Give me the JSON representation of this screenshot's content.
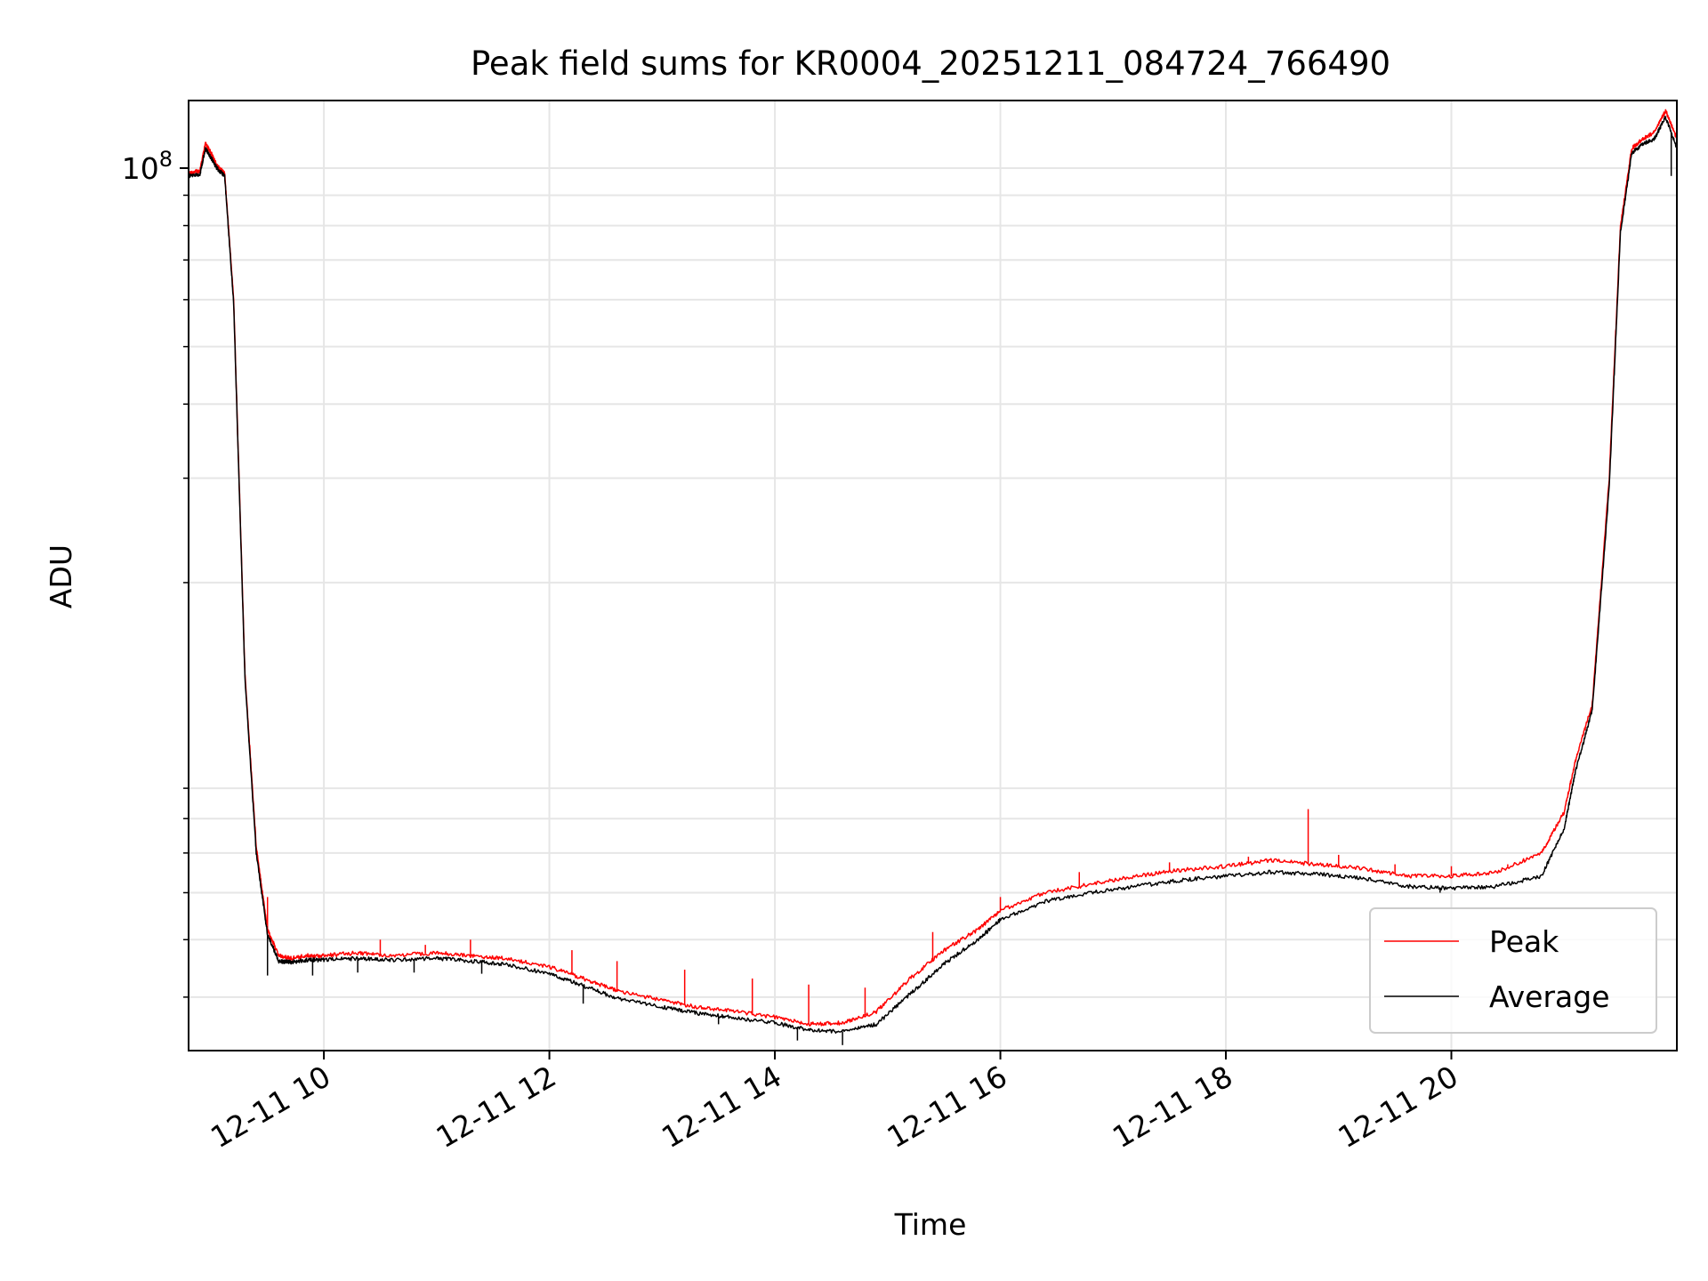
{
  "chart_data": {
    "type": "line",
    "title": "Peak field sums for KR0004_20251211_084724_766490",
    "xlabel": "Time",
    "ylabel": "ADU",
    "yscale": "log",
    "xlim_hours": [
      8.8,
      22.0
    ],
    "ylim": [
      3250000,
      130000000
    ],
    "grid": true,
    "legend_position": "lower right",
    "x_ticks": [
      {
        "hour": 10,
        "label": "12-11 10"
      },
      {
        "hour": 12,
        "label": "12-11 12"
      },
      {
        "hour": 14,
        "label": "12-11 14"
      },
      {
        "hour": 16,
        "label": "12-11 16"
      },
      {
        "hour": 18,
        "label": "12-11 18"
      },
      {
        "hour": 20,
        "label": "12-11 20"
      }
    ],
    "y_major_ticks": [
      {
        "value": 100000000,
        "label_base": "10",
        "label_exp": "8"
      }
    ],
    "y_minor_ticks": [
      4000000,
      5000000,
      6000000,
      7000000,
      8000000,
      9000000,
      20000000,
      30000000,
      40000000,
      50000000,
      60000000,
      70000000,
      80000000,
      90000000
    ],
    "series": [
      {
        "name": "Peak",
        "color": "#ff0000",
        "x_hours": [
          8.8,
          8.9,
          8.95,
          9.0,
          9.05,
          9.12,
          9.2,
          9.3,
          9.4,
          9.5,
          9.6,
          9.7,
          9.85,
          10.0,
          10.3,
          10.6,
          11.0,
          11.3,
          11.6,
          12.0,
          12.3,
          12.6,
          13.0,
          13.3,
          13.6,
          14.0,
          14.3,
          14.6,
          14.9,
          15.2,
          15.5,
          15.8,
          16.0,
          16.4,
          16.8,
          17.2,
          17.6,
          18.0,
          18.4,
          18.8,
          19.2,
          19.6,
          20.0,
          20.4,
          20.8,
          21.0,
          21.1,
          21.25,
          21.4,
          21.5,
          21.6,
          21.7,
          21.8,
          21.9,
          22.0
        ],
        "values": [
          98000000,
          99000000,
          110000000,
          106000000,
          101000000,
          98000000,
          60000000,
          14000000,
          7200000,
          5200000,
          4700000,
          4650000,
          4700000,
          4700000,
          4750000,
          4700000,
          4750000,
          4700000,
          4650000,
          4500000,
          4300000,
          4100000,
          3950000,
          3850000,
          3800000,
          3700000,
          3600000,
          3620000,
          3780000,
          4300000,
          4800000,
          5200000,
          5600000,
          6000000,
          6200000,
          6400000,
          6550000,
          6650000,
          6800000,
          6700000,
          6600000,
          6400000,
          6400000,
          6500000,
          7000000,
          8200000,
          10000000,
          12500000,
          30000000,
          80000000,
          108000000,
          112000000,
          115000000,
          125000000,
          112000000
        ],
        "spikes": [
          [
            9.5,
            5900000
          ],
          [
            10.5,
            5000000
          ],
          [
            10.9,
            4900000
          ],
          [
            11.3,
            5000000
          ],
          [
            12.2,
            4800000
          ],
          [
            12.6,
            4600000
          ],
          [
            13.2,
            4450000
          ],
          [
            13.8,
            4300000
          ],
          [
            14.3,
            4200000
          ],
          [
            14.8,
            4150000
          ],
          [
            15.4,
            5150000
          ],
          [
            16.0,
            5900000
          ],
          [
            16.7,
            6500000
          ],
          [
            17.5,
            6750000
          ],
          [
            18.2,
            6900000
          ],
          [
            18.73,
            8300000
          ],
          [
            19.0,
            6950000
          ],
          [
            19.5,
            6700000
          ],
          [
            20.0,
            6650000
          ],
          [
            20.5,
            6700000
          ]
        ]
      },
      {
        "name": "Average",
        "color": "#000000",
        "x_hours": [
          8.8,
          8.9,
          8.95,
          9.0,
          9.05,
          9.12,
          9.2,
          9.3,
          9.4,
          9.5,
          9.6,
          9.7,
          9.85,
          10.0,
          10.3,
          10.6,
          11.0,
          11.3,
          11.6,
          12.0,
          12.3,
          12.6,
          13.0,
          13.3,
          13.6,
          14.0,
          14.3,
          14.6,
          14.9,
          15.2,
          15.5,
          15.8,
          16.0,
          16.4,
          16.8,
          17.2,
          17.6,
          18.0,
          18.4,
          18.8,
          19.2,
          19.6,
          20.0,
          20.4,
          20.8,
          21.0,
          21.1,
          21.25,
          21.4,
          21.5,
          21.6,
          21.7,
          21.8,
          21.9,
          22.0
        ],
        "values": [
          97000000,
          97500000,
          108000000,
          104000000,
          100000000,
          97000000,
          59000000,
          13800000,
          7000000,
          5100000,
          4600000,
          4580000,
          4620000,
          4620000,
          4650000,
          4620000,
          4650000,
          4600000,
          4550000,
          4380000,
          4180000,
          3980000,
          3850000,
          3760000,
          3700000,
          3620000,
          3520000,
          3500000,
          3600000,
          4050000,
          4550000,
          5000000,
          5400000,
          5800000,
          6000000,
          6150000,
          6300000,
          6400000,
          6500000,
          6450000,
          6350000,
          6150000,
          6100000,
          6150000,
          6400000,
          7700000,
          9600000,
          12200000,
          29000000,
          78000000,
          106000000,
          110000000,
          112000000,
          122000000,
          108000000
        ],
        "spikes": [
          [
            9.5,
            4350000
          ],
          [
            9.9,
            4350000
          ],
          [
            10.3,
            4400000
          ],
          [
            10.8,
            4400000
          ],
          [
            11.4,
            4380000
          ],
          [
            12.3,
            3900000
          ],
          [
            13.5,
            3600000
          ],
          [
            14.2,
            3380000
          ],
          [
            14.6,
            3320000
          ],
          [
            19.9,
            6000000
          ],
          [
            21.95,
            97000000
          ]
        ]
      }
    ]
  }
}
